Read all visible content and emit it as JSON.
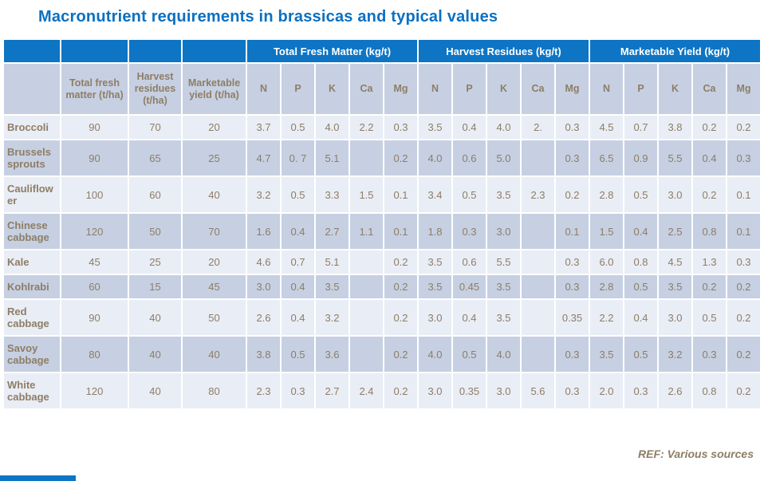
{
  "title": "Macronutrient requirements in brassicas and typical values",
  "footer": {
    "ref": "REF: Various sources"
  },
  "colors": {
    "title_blue": "#0a70c2",
    "header_blue": "#0d75c4",
    "row_light": "#e9edf5",
    "row_dark": "#c6d0e2",
    "text_brown": "#8e7d66"
  },
  "table": {
    "group_headers": [
      "Total Fresh Matter (kg/t)",
      "Harvest Residues (kg/t)",
      "Marketable Yield (kg/t)"
    ],
    "col_headers": [
      "Total fresh matter (t/ha)",
      "Harvest residues (t/ha)",
      "Marketable yield (t/ha)"
    ],
    "nutrients": [
      "N",
      "P",
      "K",
      "Ca",
      "Mg"
    ],
    "rows": [
      {
        "label": "Broccoli",
        "tha": [
          "90",
          "70",
          "20"
        ],
        "tfm": [
          "3.7",
          "0.5",
          "4.0",
          "2.2",
          "0.3"
        ],
        "hr": [
          "3.5",
          "0.4",
          "4.0",
          "2.",
          "0.3"
        ],
        "my": [
          "4.5",
          "0.7",
          "3.8",
          "0.2",
          "0.2"
        ]
      },
      {
        "label": "Brussels sprouts",
        "tha": [
          "90",
          "65",
          "25"
        ],
        "tfm": [
          "4.7",
          "0. 7",
          "5.1",
          "",
          "0.2"
        ],
        "hr": [
          "4.0",
          "0.6",
          "5.0",
          "",
          "0.3"
        ],
        "my": [
          "6.5",
          "0.9",
          "5.5",
          "0.4",
          "0.3"
        ]
      },
      {
        "label": "Cauliflower",
        "tha": [
          "100",
          "60",
          "40"
        ],
        "tfm": [
          "3.2",
          "0.5",
          "3.3",
          "1.5",
          "0.1"
        ],
        "hr": [
          "3.4",
          "0.5",
          "3.5",
          "2.3",
          "0.2"
        ],
        "my": [
          "2.8",
          "0.5",
          "3.0",
          "0.2",
          "0.1"
        ]
      },
      {
        "label": "Chinese cabbage",
        "tha": [
          "120",
          "50",
          "70"
        ],
        "tfm": [
          "1.6",
          "0.4",
          "2.7",
          "1.1",
          "0.1"
        ],
        "hr": [
          "1.8",
          "0.3",
          "3.0",
          "",
          "0.1"
        ],
        "my": [
          "1.5",
          "0.4",
          "2.5",
          "0.8",
          "0.1"
        ]
      },
      {
        "label": "Kale",
        "tha": [
          "45",
          "25",
          "20"
        ],
        "tfm": [
          "4.6",
          "0.7",
          "5.1",
          "",
          "0.2"
        ],
        "hr": [
          "3.5",
          "0.6",
          "5.5",
          "",
          "0.3"
        ],
        "my": [
          "6.0",
          "0.8",
          "4.5",
          "1.3",
          "0.3"
        ]
      },
      {
        "label": "Kohlrabi",
        "tha": [
          "60",
          "15",
          "45"
        ],
        "tfm": [
          "3.0",
          "0.4",
          "3.5",
          "",
          "0.2"
        ],
        "hr": [
          "3.5",
          "0.45",
          "3.5",
          "",
          "0.3"
        ],
        "my": [
          "2.8",
          "0.5",
          "3.5",
          "0.2",
          "0.2"
        ]
      },
      {
        "label": "Red cabbage",
        "tha": [
          "90",
          "40",
          "50"
        ],
        "tfm": [
          "2.6",
          "0.4",
          "3.2",
          "",
          "0.2"
        ],
        "hr": [
          "3.0",
          "0.4",
          "3.5",
          "",
          "0.35"
        ],
        "my": [
          "2.2",
          "0.4",
          "3.0",
          "0.5",
          "0.2"
        ]
      },
      {
        "label": "Savoy cabbage",
        "tha": [
          "80",
          "40",
          "40"
        ],
        "tfm": [
          "3.8",
          "0.5",
          "3.6",
          "",
          "0.2"
        ],
        "hr": [
          "4.0",
          "0.5",
          "4.0",
          "",
          "0.3"
        ],
        "my": [
          "3.5",
          "0.5",
          "3.2",
          "0.3",
          "0.2"
        ]
      },
      {
        "label": "White cabbage",
        "tha": [
          "120",
          "40",
          "80"
        ],
        "tfm": [
          "2.3",
          "0.3",
          "2.7",
          "2.4",
          "0.2"
        ],
        "hr": [
          "3.0",
          "0.35",
          "3.0",
          "5.6",
          "0.3"
        ],
        "my": [
          "2.0",
          "0.3",
          "2.6",
          "0.8",
          "0.2"
        ]
      }
    ]
  }
}
